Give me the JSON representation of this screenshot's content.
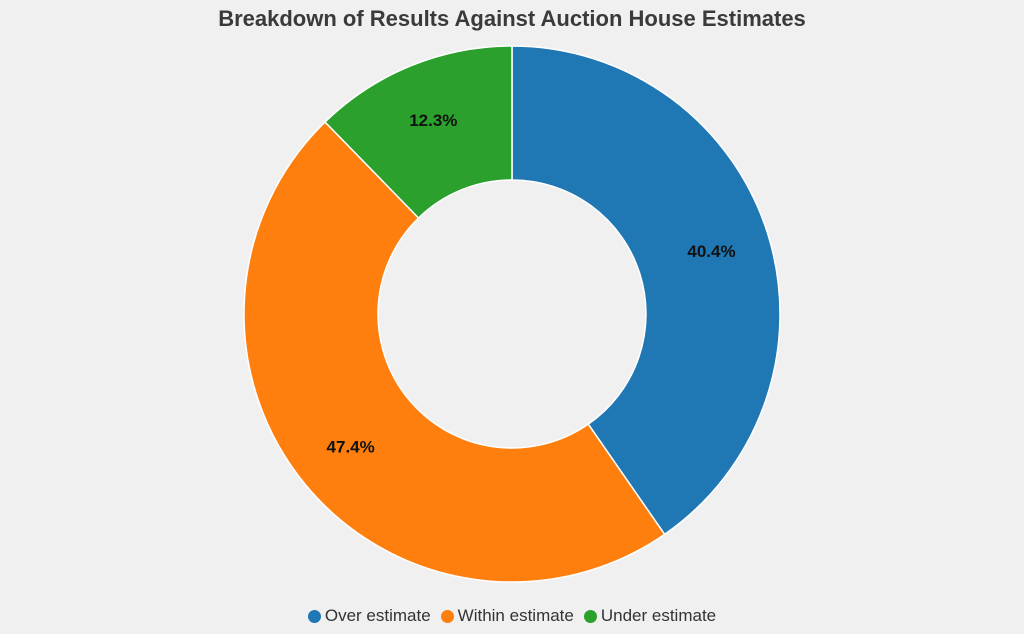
{
  "chart_data": {
    "type": "pie",
    "title": "Breakdown of Results Against Auction House Estimates",
    "donut": true,
    "categories": [
      "Over estimate",
      "Within estimate",
      "Under estimate"
    ],
    "values": [
      40.4,
      47.4,
      12.3
    ],
    "labels": [
      "40.4%",
      "47.4%",
      "12.3%"
    ],
    "colors": [
      "#1f77b4",
      "#ff7f0e",
      "#2ca02c"
    ],
    "legend_position": "bottom"
  }
}
